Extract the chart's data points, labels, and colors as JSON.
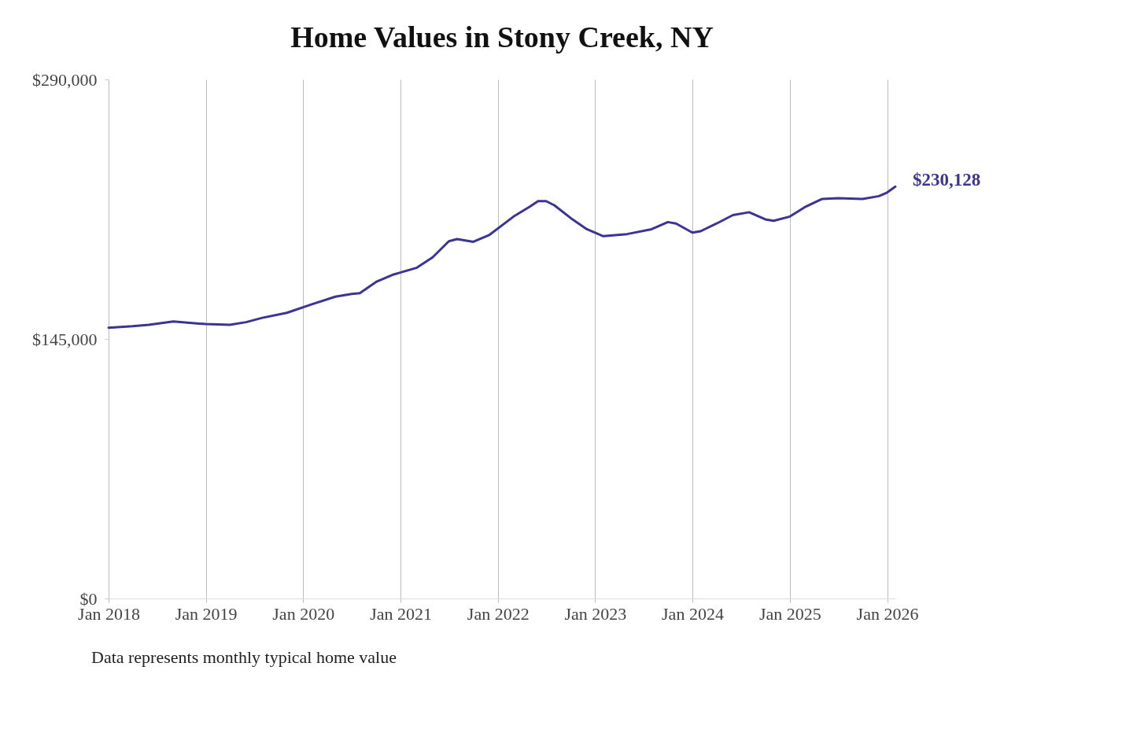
{
  "chart_data": {
    "type": "line",
    "title": "Home Values in Stony Creek, NY",
    "x": [
      "2018-01",
      "2018-04",
      "2018-06",
      "2018-09",
      "2019-01",
      "2019-04",
      "2019-06",
      "2019-08",
      "2019-11",
      "2020-02",
      "2020-05",
      "2020-07",
      "2020-08",
      "2020-10",
      "2020-12",
      "2021-03",
      "2021-05",
      "2021-07",
      "2021-08",
      "2021-10",
      "2021-12",
      "2022-03",
      "2022-05",
      "2022-06",
      "2022-07",
      "2022-08",
      "2022-10",
      "2022-12",
      "2023-02",
      "2023-05",
      "2023-08",
      "2023-10",
      "2023-11",
      "2024-01",
      "2024-02",
      "2024-04",
      "2024-06",
      "2024-08",
      "2024-10",
      "2024-11",
      "2025-01",
      "2025-03",
      "2025-05",
      "2025-07",
      "2025-10",
      "2025-12",
      "2026-01",
      "2026-02"
    ],
    "series": [
      {
        "color": "#3b3494",
        "values": [
          151300,
          152100,
          152900,
          154800,
          153300,
          152900,
          154400,
          156800,
          159600,
          164300,
          168600,
          170200,
          170600,
          176900,
          180800,
          184700,
          190600,
          199600,
          200800,
          199300,
          203200,
          213400,
          218900,
          222000,
          222000,
          219700,
          212600,
          206300,
          202400,
          203600,
          206300,
          210300,
          209500,
          204400,
          205200,
          209500,
          214200,
          215800,
          211800,
          211000,
          213400,
          218900,
          223200,
          223600,
          223200,
          224800,
          226800,
          230128
        ]
      }
    ],
    "xticks": [
      {
        "value": "2018-01",
        "label": "Jan 2018"
      },
      {
        "value": "2019-01",
        "label": "Jan 2019"
      },
      {
        "value": "2020-01",
        "label": "Jan 2020"
      },
      {
        "value": "2021-01",
        "label": "Jan 2021"
      },
      {
        "value": "2022-01",
        "label": "Jan 2022"
      },
      {
        "value": "2023-01",
        "label": "Jan 2023"
      },
      {
        "value": "2024-01",
        "label": "Jan 2024"
      },
      {
        "value": "2025-01",
        "label": "Jan 2025"
      },
      {
        "value": "2026-01",
        "label": "Jan 2026"
      }
    ],
    "xlim": [
      "2018-01",
      "2026-02"
    ],
    "ylim": [
      0,
      290000
    ],
    "yticks": [
      {
        "value": 0,
        "label": "$0"
      },
      {
        "value": 145000,
        "label": "$145,000"
      },
      {
        "value": 290000,
        "label": "$290,000"
      }
    ],
    "grid": "x",
    "line_style": "solid",
    "marker": "none",
    "annotations": [
      {
        "text": "$230,128",
        "x": "2026-02",
        "y": 230128
      },
      "Data represents monthly typical home value"
    ]
  }
}
